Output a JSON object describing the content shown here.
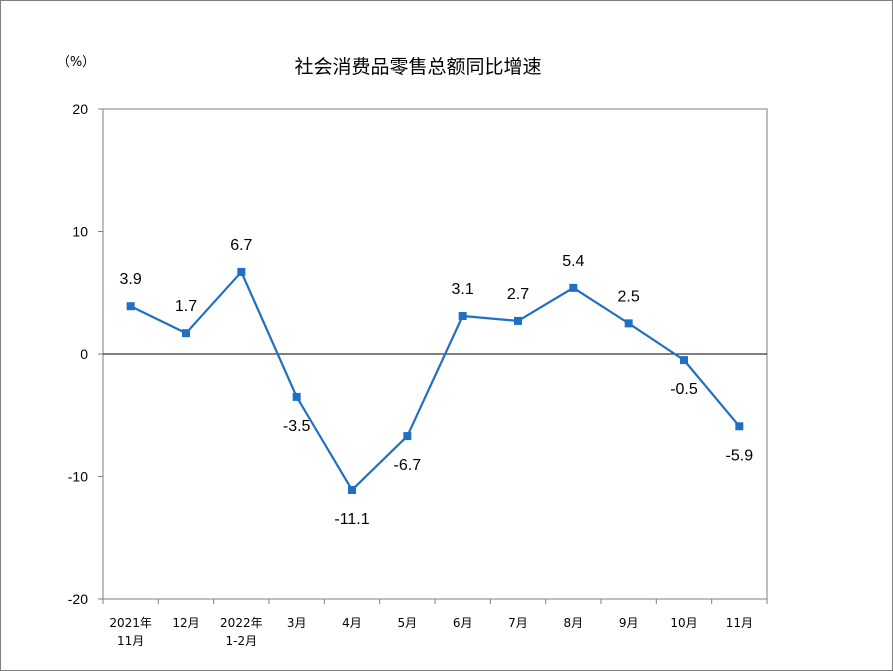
{
  "chart_data": {
    "type": "line",
    "title": "社会消费品零售总额同比增速",
    "ylabel": "（%）",
    "xlabel": "",
    "ylim": [
      -20,
      20
    ],
    "yticks": [
      -20,
      -10,
      0,
      10,
      20
    ],
    "grid": false,
    "legend": "none",
    "categories": [
      [
        "2021年",
        "11月"
      ],
      [
        "12月"
      ],
      [
        "2022年",
        "1-2月"
      ],
      [
        "3月"
      ],
      [
        "4月"
      ],
      [
        "5月"
      ],
      [
        "6月"
      ],
      [
        "7月"
      ],
      [
        "8月"
      ],
      [
        "9月"
      ],
      [
        "10月"
      ],
      [
        "11月"
      ]
    ],
    "series": [
      {
        "values": [
          3.9,
          1.7,
          6.7,
          -3.5,
          -11.1,
          -6.7,
          3.1,
          2.7,
          5.4,
          2.5,
          -0.5,
          -5.9
        ],
        "labels": [
          "3.9",
          "1.7",
          "6.7",
          "-3.5",
          "-11.1",
          "-6.7",
          "3.1",
          "2.7",
          "5.4",
          "2.5",
          "-0.5",
          "-5.9"
        ],
        "label_pos": [
          "above",
          "above",
          "above",
          "below",
          "below",
          "below",
          "above",
          "above",
          "above",
          "above",
          "below",
          "below"
        ],
        "color": "#1f6fc4"
      }
    ]
  }
}
